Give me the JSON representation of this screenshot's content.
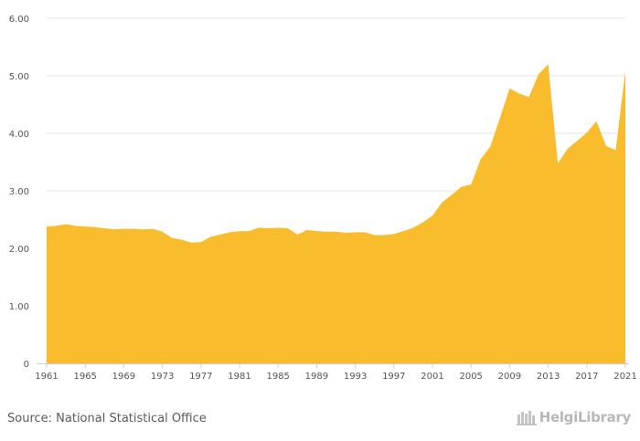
{
  "chart_data": {
    "type": "area",
    "title": "",
    "xlabel": "",
    "ylabel": "",
    "color": "#F9BC2C",
    "ylim": [
      0,
      6
    ],
    "yticks": [
      0,
      1,
      2,
      3,
      4,
      5,
      6
    ],
    "ytick_labels": [
      "0",
      "1.00",
      "2.00",
      "3.00",
      "4.00",
      "5.00",
      "6.00"
    ],
    "xlim": [
      1961,
      2021
    ],
    "xticks": [
      1961,
      1965,
      1969,
      1973,
      1977,
      1981,
      1985,
      1989,
      1993,
      1997,
      2001,
      2005,
      2009,
      2013,
      2017,
      2021
    ],
    "xtick_labels": [
      "1961",
      "1965",
      "1969",
      "1973",
      "1977",
      "1981",
      "1985",
      "1989",
      "1993",
      "1997",
      "2001",
      "2005",
      "2009",
      "2013",
      "2017",
      "2021"
    ],
    "x": [
      1961,
      1962,
      1963,
      1964,
      1965,
      1966,
      1967,
      1968,
      1969,
      1970,
      1971,
      1972,
      1973,
      1974,
      1975,
      1976,
      1977,
      1978,
      1979,
      1980,
      1981,
      1982,
      1983,
      1984,
      1985,
      1986,
      1987,
      1988,
      1989,
      1990,
      1991,
      1992,
      1993,
      1994,
      1995,
      1996,
      1997,
      1998,
      1999,
      2000,
      2001,
      2002,
      2003,
      2004,
      2005,
      2006,
      2007,
      2008,
      2009,
      2010,
      2011,
      2012,
      2013,
      2014,
      2015,
      2016,
      2017,
      2018,
      2019,
      2020,
      2021
    ],
    "values": [
      2.38,
      2.39,
      2.42,
      2.39,
      2.38,
      2.37,
      2.35,
      2.33,
      2.34,
      2.34,
      2.33,
      2.34,
      2.29,
      2.18,
      2.15,
      2.1,
      2.11,
      2.2,
      2.24,
      2.28,
      2.3,
      2.3,
      2.36,
      2.35,
      2.36,
      2.35,
      2.24,
      2.32,
      2.3,
      2.29,
      2.29,
      2.27,
      2.28,
      2.28,
      2.23,
      2.23,
      2.25,
      2.3,
      2.36,
      2.45,
      2.57,
      2.8,
      2.93,
      3.07,
      3.11,
      3.55,
      3.77,
      4.27,
      4.78,
      4.69,
      4.63,
      5.03,
      5.2,
      3.48,
      3.73,
      3.87,
      4.01,
      4.21,
      3.78,
      3.71,
      5.09
    ]
  },
  "footer": {
    "source": "Source: National Statistical Office",
    "brand": "HelgiLibrary"
  },
  "colors": {
    "area": "#F9BC2C",
    "grid": "#E6E6E6",
    "axis": "#CCCCCC"
  }
}
